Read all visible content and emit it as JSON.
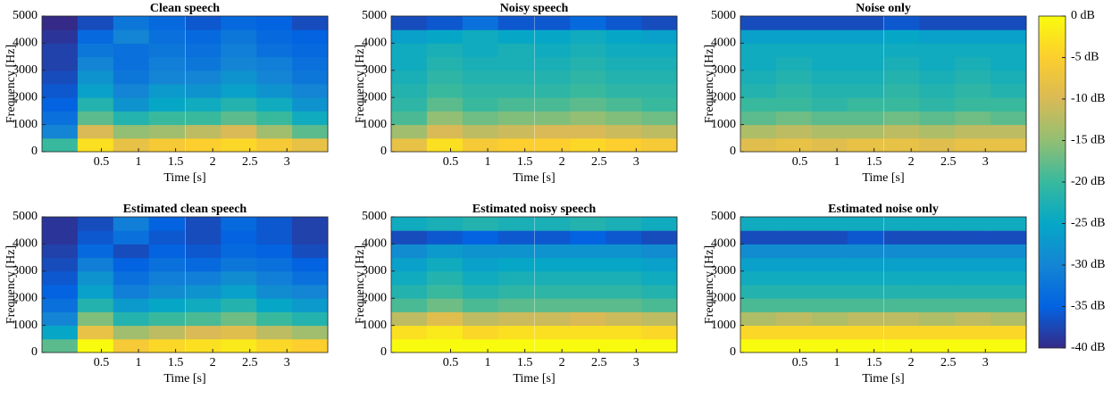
{
  "chart_data": [
    {
      "type": "heatmap",
      "title": "Clean speech",
      "xlabel": "Time [s]",
      "ylabel": "Frequency [Hz]",
      "xlim": [
        -0.3,
        3.55
      ],
      "ylim": [
        0,
        5000
      ],
      "xticks": [
        0.5,
        1,
        1.5,
        2,
        2.5,
        3
      ],
      "yticks": [
        0,
        1000,
        2000,
        3000,
        4000,
        5000
      ],
      "x": [
        -0.06,
        0.42,
        0.9,
        1.38,
        1.87,
        2.35,
        2.83,
        3.31
      ],
      "y": [
        250,
        750,
        1250,
        1750,
        2250,
        2750,
        3250,
        3750,
        4250,
        4750
      ],
      "values": [
        [
          -20,
          -3,
          -8,
          -6,
          -5,
          -4,
          -6,
          -8
        ],
        [
          -30,
          -10,
          -15,
          -14,
          -12,
          -10,
          -14,
          -18
        ],
        [
          -33,
          -18,
          -22,
          -20,
          -20,
          -18,
          -20,
          -24
        ],
        [
          -35,
          -22,
          -28,
          -25,
          -24,
          -22,
          -24,
          -28
        ],
        [
          -36,
          -26,
          -30,
          -27,
          -28,
          -26,
          -28,
          -30
        ],
        [
          -37,
          -28,
          -32,
          -30,
          -30,
          -28,
          -30,
          -32
        ],
        [
          -38,
          -30,
          -33,
          -31,
          -32,
          -30,
          -31,
          -33
        ],
        [
          -38,
          -32,
          -33,
          -32,
          -33,
          -31,
          -33,
          -34
        ],
        [
          -39,
          -34,
          -30,
          -33,
          -34,
          -32,
          -34,
          -35
        ],
        [
          -40,
          -37,
          -32,
          -34,
          -36,
          -34,
          -35,
          -37
        ]
      ]
    },
    {
      "type": "heatmap",
      "title": "Noisy speech",
      "xlabel": "Time [s]",
      "ylabel": "Frequency [Hz]",
      "xlim": [
        -0.3,
        3.55
      ],
      "ylim": [
        0,
        5000
      ],
      "xticks": [
        0.5,
        1,
        1.5,
        2,
        2.5,
        3
      ],
      "yticks": [
        0,
        1000,
        2000,
        3000,
        4000,
        5000
      ],
      "x": [
        -0.06,
        0.42,
        0.9,
        1.38,
        1.87,
        2.35,
        2.83,
        3.31
      ],
      "y": [
        250,
        750,
        1250,
        1750,
        2250,
        2750,
        3250,
        3750,
        4250,
        4750
      ],
      "values": [
        [
          -8,
          -3,
          -6,
          -5,
          -5,
          -4,
          -5,
          -6
        ],
        [
          -14,
          -10,
          -12,
          -11,
          -10,
          -10,
          -11,
          -12
        ],
        [
          -19,
          -15,
          -17,
          -16,
          -16,
          -15,
          -16,
          -17
        ],
        [
          -21,
          -18,
          -20,
          -19,
          -19,
          -18,
          -19,
          -20
        ],
        [
          -22,
          -20,
          -21,
          -21,
          -21,
          -20,
          -21,
          -21
        ],
        [
          -23,
          -21,
          -22,
          -22,
          -22,
          -21,
          -22,
          -22
        ],
        [
          -24,
          -22,
          -23,
          -23,
          -23,
          -22,
          -23,
          -23
        ],
        [
          -24,
          -23,
          -24,
          -23,
          -24,
          -23,
          -24,
          -24
        ],
        [
          -26,
          -25,
          -24,
          -25,
          -25,
          -24,
          -25,
          -26
        ],
        [
          -37,
          -36,
          -33,
          -36,
          -36,
          -34,
          -36,
          -37
        ]
      ]
    },
    {
      "type": "heatmap",
      "title": "Noise only",
      "xlabel": "Time [s]",
      "ylabel": "Frequency [Hz]",
      "xlim": [
        -0.3,
        3.55
      ],
      "ylim": [
        0,
        5000
      ],
      "xticks": [
        0.5,
        1,
        1.5,
        2,
        2.5,
        3
      ],
      "yticks": [
        0,
        1000,
        2000,
        3000,
        4000,
        5000
      ],
      "x": [
        -0.06,
        0.42,
        0.9,
        1.38,
        1.87,
        2.35,
        2.83,
        3.31
      ],
      "y": [
        250,
        750,
        1250,
        1750,
        2250,
        2750,
        3250,
        3750,
        4250,
        4750
      ],
      "values": [
        [
          -9,
          -8,
          -9,
          -8,
          -8,
          -9,
          -8,
          -8
        ],
        [
          -13,
          -12,
          -13,
          -13,
          -12,
          -13,
          -12,
          -12
        ],
        [
          -18,
          -17,
          -18,
          -18,
          -17,
          -18,
          -17,
          -18
        ],
        [
          -20,
          -20,
          -21,
          -20,
          -20,
          -21,
          -20,
          -20
        ],
        [
          -22,
          -21,
          -22,
          -22,
          -21,
          -22,
          -21,
          -22
        ],
        [
          -23,
          -22,
          -23,
          -23,
          -22,
          -23,
          -22,
          -23
        ],
        [
          -24,
          -23,
          -24,
          -24,
          -23,
          -24,
          -23,
          -24
        ],
        [
          -24,
          -24,
          -24,
          -24,
          -24,
          -24,
          -24,
          -24
        ],
        [
          -26,
          -26,
          -26,
          -26,
          -25,
          -26,
          -26,
          -26
        ],
        [
          -37,
          -37,
          -37,
          -37,
          -36,
          -37,
          -37,
          -37
        ]
      ]
    },
    {
      "type": "heatmap",
      "title": "Estimated clean speech",
      "xlabel": "Time [s]",
      "ylabel": "Frequency [Hz]",
      "xlim": [
        -0.3,
        3.55
      ],
      "ylim": [
        0,
        5000
      ],
      "xticks": [
        0.5,
        1,
        1.5,
        2,
        2.5,
        3
      ],
      "yticks": [
        0,
        1000,
        2000,
        3000,
        4000,
        5000
      ],
      "x": [
        -0.06,
        0.42,
        0.9,
        1.38,
        1.87,
        2.35,
        2.83,
        3.31
      ],
      "y": [
        250,
        750,
        1250,
        1750,
        2250,
        2750,
        3250,
        3750,
        4250,
        4750
      ],
      "values": [
        [
          -18,
          0,
          -6,
          -4,
          -3,
          -2,
          -4,
          -5
        ],
        [
          -25,
          -8,
          -14,
          -12,
          -10,
          -9,
          -12,
          -14
        ],
        [
          -30,
          -16,
          -22,
          -20,
          -19,
          -17,
          -20,
          -22
        ],
        [
          -33,
          -22,
          -27,
          -25,
          -24,
          -22,
          -25,
          -27
        ],
        [
          -35,
          -26,
          -31,
          -29,
          -28,
          -26,
          -29,
          -30
        ],
        [
          -36,
          -28,
          -33,
          -31,
          -31,
          -29,
          -31,
          -33
        ],
        [
          -37,
          -31,
          -35,
          -33,
          -34,
          -32,
          -33,
          -35
        ],
        [
          -38,
          -34,
          -37,
          -35,
          -36,
          -34,
          -35,
          -37
        ],
        [
          -39,
          -36,
          -33,
          -36,
          -37,
          -35,
          -36,
          -38
        ],
        [
          -39,
          -37,
          -31,
          -35,
          -37,
          -34,
          -36,
          -38
        ]
      ]
    },
    {
      "type": "heatmap",
      "title": "Estimated noisy speech",
      "xlabel": "Time [s]",
      "ylabel": "Frequency [Hz]",
      "xlim": [
        -0.3,
        3.55
      ],
      "ylim": [
        0,
        5000
      ],
      "xticks": [
        0.5,
        1,
        1.5,
        2,
        2.5,
        3
      ],
      "yticks": [
        0,
        1000,
        2000,
        3000,
        4000,
        5000
      ],
      "x": [
        -0.06,
        0.42,
        0.9,
        1.38,
        1.87,
        2.35,
        2.83,
        3.31
      ],
      "y": [
        250,
        750,
        1250,
        1750,
        2250,
        2750,
        3250,
        3750,
        4250,
        4750
      ],
      "values": [
        [
          0,
          0,
          0,
          0,
          0,
          0,
          0,
          0
        ],
        [
          -3,
          -2,
          -4,
          -3,
          -3,
          -3,
          -3,
          -4
        ],
        [
          -12,
          -9,
          -12,
          -11,
          -11,
          -10,
          -11,
          -12
        ],
        [
          -19,
          -17,
          -19,
          -18,
          -18,
          -18,
          -18,
          -19
        ],
        [
          -22,
          -20,
          -22,
          -21,
          -21,
          -21,
          -21,
          -22
        ],
        [
          -24,
          -22,
          -24,
          -23,
          -23,
          -23,
          -23,
          -24
        ],
        [
          -26,
          -24,
          -26,
          -25,
          -25,
          -25,
          -25,
          -26
        ],
        [
          -29,
          -27,
          -28,
          -28,
          -28,
          -28,
          -28,
          -29
        ],
        [
          -37,
          -36,
          -35,
          -36,
          -36,
          -35,
          -36,
          -37
        ],
        [
          -24,
          -23,
          -22,
          -23,
          -23,
          -22,
          -23,
          -24
        ]
      ]
    },
    {
      "type": "heatmap",
      "title": "Estimated noise only",
      "xlabel": "Time [s]",
      "ylabel": "Frequency [Hz]",
      "xlim": [
        -0.3,
        3.55
      ],
      "ylim": [
        0,
        5000
      ],
      "xticks": [
        0.5,
        1,
        1.5,
        2,
        2.5,
        3
      ],
      "yticks": [
        0,
        1000,
        2000,
        3000,
        4000,
        5000
      ],
      "x": [
        -0.06,
        0.42,
        0.9,
        1.38,
        1.87,
        2.35,
        2.83,
        3.31
      ],
      "y": [
        250,
        750,
        1250,
        1750,
        2250,
        2750,
        3250,
        3750,
        4250,
        4750
      ],
      "values": [
        [
          0,
          0,
          0,
          0,
          0,
          0,
          0,
          0
        ],
        [
          -4,
          -4,
          -4,
          -4,
          -4,
          -4,
          -4,
          -4
        ],
        [
          -13,
          -12,
          -13,
          -12,
          -12,
          -13,
          -12,
          -13
        ],
        [
          -19,
          -19,
          -19,
          -19,
          -19,
          -19,
          -19,
          -19
        ],
        [
          -22,
          -22,
          -22,
          -22,
          -22,
          -22,
          -22,
          -22
        ],
        [
          -24,
          -24,
          -24,
          -24,
          -24,
          -24,
          -24,
          -24
        ],
        [
          -26,
          -26,
          -26,
          -26,
          -26,
          -26,
          -26,
          -26
        ],
        [
          -29,
          -29,
          -29,
          -29,
          -29,
          -29,
          -29,
          -29
        ],
        [
          -37,
          -37,
          -37,
          -36,
          -37,
          -37,
          -37,
          -37
        ],
        [
          -24,
          -24,
          -24,
          -24,
          -24,
          -24,
          -24,
          -24
        ]
      ]
    }
  ],
  "colorbar": {
    "zlim": [
      -40,
      0
    ],
    "zticks": [
      {
        "value": 0,
        "label": "0 dB"
      },
      {
        "value": -5,
        "label": "-5 dB"
      },
      {
        "value": -10,
        "label": "-10 dB"
      },
      {
        "value": -15,
        "label": "-15 dB"
      },
      {
        "value": -20,
        "label": "-20 dB"
      },
      {
        "value": -25,
        "label": "-25 dB"
      },
      {
        "value": -30,
        "label": "-30 dB"
      },
      {
        "value": -35,
        "label": "-35 dB"
      },
      {
        "value": -40,
        "label": "-40 dB"
      }
    ],
    "colormap": [
      "#352a87",
      "#0363e1",
      "#1485d4",
      "#06a7c6",
      "#38b99e",
      "#92bf73",
      "#d9ba56",
      "#fcce2e",
      "#f9fb0e"
    ]
  }
}
